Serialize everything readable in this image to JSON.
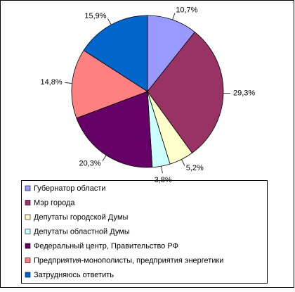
{
  "chart_data": {
    "type": "pie",
    "categories": [
      "Губернатор области",
      "Мэр города",
      "Депутаты городской Думы",
      "Депутаты областной Думы",
      "Федеральный центр, Правительство РФ",
      "Предприятия-монополисты, предприятия энергетики",
      "Затрудняюсь ответить"
    ],
    "values": [
      10.7,
      29.3,
      5.2,
      3.8,
      20.3,
      14.8,
      15.9
    ],
    "value_labels": [
      "10,7%",
      "29,3%",
      "5,2%",
      "3,8%",
      "20,3%",
      "14,8%",
      "15,9%"
    ],
    "colors": [
      "#9999ff",
      "#993366",
      "#ffffcc",
      "#ccffff",
      "#660066",
      "#ff8080",
      "#0066cc"
    ]
  }
}
